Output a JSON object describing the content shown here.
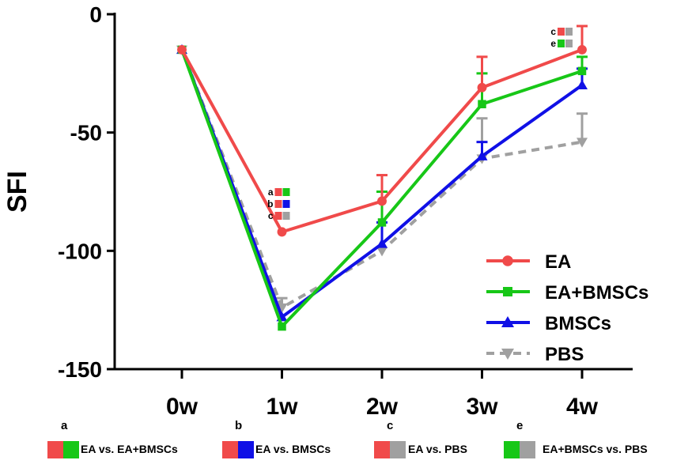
{
  "chart_data": {
    "type": "line",
    "title": "",
    "xlabel": "",
    "ylabel": "SFI",
    "categories": [
      "0w",
      "1w",
      "2w",
      "3w",
      "4w"
    ],
    "ylim": [
      -150,
      0
    ],
    "yticks": [
      0,
      -50,
      -100,
      -150
    ],
    "series": [
      {
        "name": "EA",
        "color": "#f04a4a",
        "marker": "circle",
        "dash": false,
        "values": [
          -15,
          -92,
          -79,
          -31,
          -15
        ],
        "errors": [
          0,
          0,
          11,
          13,
          10
        ]
      },
      {
        "name": "EA+BMSCs",
        "color": "#17c717",
        "marker": "square",
        "dash": false,
        "values": [
          -15,
          -132,
          -88,
          -38,
          -24
        ],
        "errors": [
          0,
          0,
          13,
          13,
          6
        ]
      },
      {
        "name": "BMSCs",
        "color": "#1010e6",
        "marker": "triangle-up",
        "dash": false,
        "values": [
          -15,
          -128,
          -97,
          -60,
          -30
        ],
        "errors": [
          0,
          0,
          9,
          6,
          7
        ]
      },
      {
        "name": "PBS",
        "color": "#a0a0a0",
        "marker": "triangle-down",
        "dash": true,
        "values": [
          -15,
          -124,
          -100,
          -61,
          -54
        ],
        "errors": [
          0,
          4,
          0,
          17,
          12
        ]
      }
    ],
    "annotations": [
      {
        "category": "1w",
        "letters": [
          "a",
          "b",
          "c"
        ],
        "swatches": [
          [
            "#f04a4a",
            "#17c717"
          ],
          [
            "#f04a4a",
            "#1010e6"
          ],
          [
            "#f04a4a",
            "#a0a0a0"
          ]
        ]
      },
      {
        "category": "4w",
        "letters": [
          "c",
          "e"
        ],
        "swatches": [
          [
            "#f04a4a",
            "#a0a0a0"
          ],
          [
            "#17c717",
            "#a0a0a0"
          ]
        ]
      }
    ]
  },
  "footnotes": [
    {
      "letter": "a",
      "text": "EA vs. EA+BMSCs",
      "colors": [
        "#f04a4a",
        "#17c717"
      ]
    },
    {
      "letter": "b",
      "text": "EA vs. BMSCs",
      "colors": [
        "#f04a4a",
        "#1010e6"
      ]
    },
    {
      "letter": "c",
      "text": "EA vs. PBS",
      "colors": [
        "#f04a4a",
        "#a0a0a0"
      ]
    },
    {
      "letter": "e",
      "text": "EA+BMSCs vs. PBS",
      "colors": [
        "#17c717",
        "#a0a0a0"
      ]
    }
  ]
}
